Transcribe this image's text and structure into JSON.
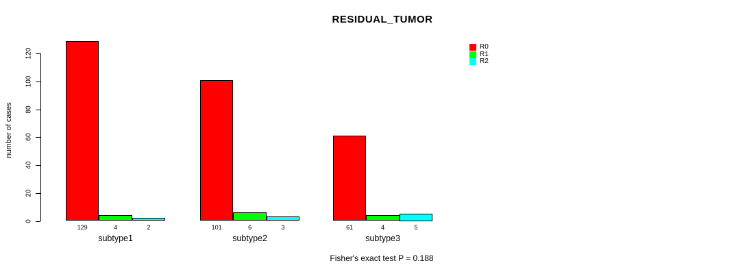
{
  "chart_data": {
    "type": "bar",
    "title": "RESIDUAL_TUMOR",
    "categories": [
      "subtype1",
      "subtype2",
      "subtype3"
    ],
    "series": [
      {
        "name": "R0",
        "color": "#ff0000",
        "values": [
          129,
          101,
          61
        ]
      },
      {
        "name": "R1",
        "color": "#00ff00",
        "values": [
          4,
          6,
          4
        ]
      },
      {
        "name": "R2",
        "color": "#00ffff",
        "values": [
          2,
          3,
          5
        ]
      }
    ],
    "xlabel": "",
    "ylabel": "number of cases",
    "ylim": [
      0,
      120
    ],
    "yticks": [
      0,
      20,
      40,
      60,
      80,
      100,
      120
    ],
    "bar_value_labels_shown": true,
    "grid": false,
    "legend_position": "top-right",
    "annotation": "Fisher's exact test P = 0.188"
  }
}
